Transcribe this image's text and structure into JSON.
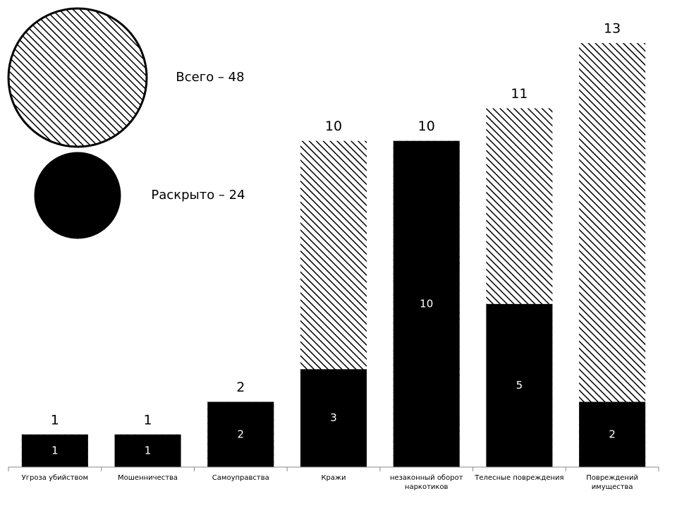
{
  "chart_data": {
    "type": "bar",
    "categories": [
      "Угроза убийством",
      "Мошенничества",
      "Самоуправства",
      "Кражи",
      "незаконный оборот наркотиков",
      "Телесные повреждения",
      "Повреждений имущества"
    ],
    "series": [
      {
        "name": "Всего – 48",
        "color": "#000000",
        "fill": "hatch",
        "values": [
          1,
          1,
          2,
          10,
          10,
          11,
          13
        ]
      },
      {
        "name": "Раскрыто – 24",
        "color": "#000000",
        "fill": "solid",
        "values": [
          1,
          1,
          2,
          3,
          10,
          5,
          2
        ]
      }
    ],
    "ylim": [
      0,
      13
    ]
  }
}
